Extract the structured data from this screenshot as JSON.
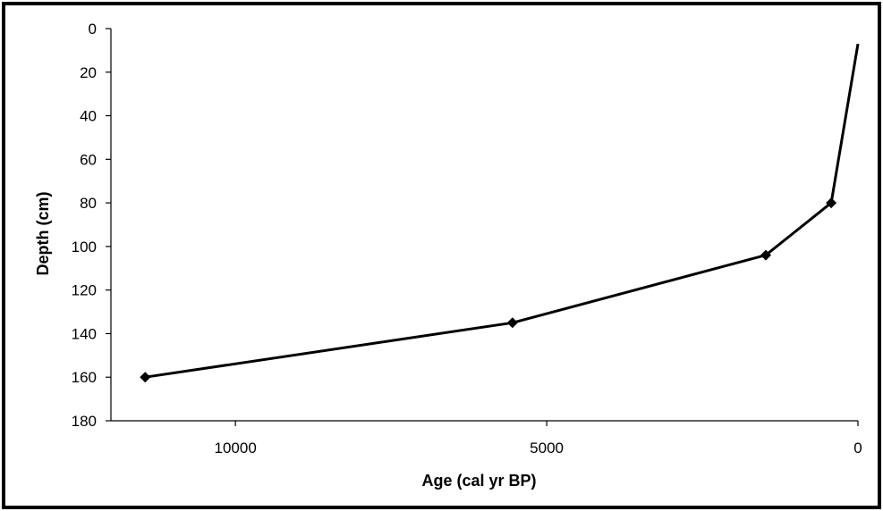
{
  "chart_data": {
    "type": "line",
    "xlabel": "Age (cal yr BP)",
    "ylabel": "Depth (cm)",
    "xlim": [
      12000,
      0
    ],
    "ylim": [
      0,
      180
    ],
    "x_reversed": true,
    "y_reversed": true,
    "x_ticks": [
      10000,
      5000,
      0
    ],
    "y_ticks": [
      0,
      20,
      40,
      60,
      80,
      100,
      120,
      140,
      160,
      180
    ],
    "grid": false,
    "legend": "none",
    "series": [
      {
        "color": "#000000",
        "marker": "diamond",
        "points": [
          {
            "x": 0,
            "y": 7,
            "marker": false
          },
          {
            "x": 430,
            "y": 80,
            "marker": true
          },
          {
            "x": 1480,
            "y": 104,
            "marker": true
          },
          {
            "x": 5550,
            "y": 135,
            "marker": true
          },
          {
            "x": 11450,
            "y": 160,
            "marker": true
          }
        ]
      }
    ]
  }
}
